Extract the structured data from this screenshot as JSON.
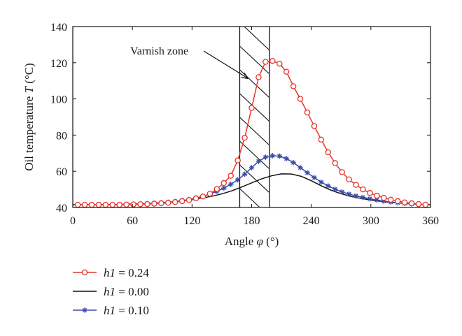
{
  "chart_data": {
    "type": "line",
    "xlabel": {
      "prefix": "Angle ",
      "symbol": "φ",
      "suffix": " (°)"
    },
    "ylabel": {
      "prefix": "Oil temperature ",
      "symbol": "T",
      "suffix": " (°C)"
    },
    "xlim": [
      0,
      360
    ],
    "ylim": [
      40,
      140
    ],
    "xticks": [
      0,
      60,
      120,
      180,
      240,
      300,
      360
    ],
    "yticks": [
      40,
      60,
      80,
      100,
      120,
      140
    ],
    "grid": false,
    "legend_position": "bottom-left, below plot",
    "annotation": {
      "text": "Varnish zone",
      "x_range": [
        168,
        198
      ]
    },
    "series": [
      {
        "name": "0.24",
        "label_var": "h1",
        "label_op": " = ",
        "label_val": "0.24",
        "color": "#e8352a",
        "marker": "circle",
        "x": [
          5,
          12,
          19,
          26,
          33,
          40,
          47,
          54,
          61,
          68,
          75,
          82,
          89,
          96,
          103,
          110,
          117,
          124,
          131,
          138,
          145,
          152,
          159,
          166,
          173,
          180,
          187,
          194,
          201,
          208,
          215,
          222,
          229,
          236,
          243,
          250,
          257,
          264,
          271,
          278,
          285,
          292,
          299,
          306,
          313,
          320,
          327,
          334,
          341,
          348,
          355
        ],
        "values": [
          41.5,
          41.5,
          41.5,
          41.5,
          41.5,
          41.5,
          41.5,
          41.6,
          41.7,
          41.8,
          41.9,
          42.1,
          42.3,
          42.6,
          43.0,
          43.5,
          44.1,
          45.0,
          46.1,
          47.6,
          50.2,
          53.5,
          57.5,
          66.0,
          78.5,
          95.0,
          112.0,
          120.5,
          121.0,
          119.5,
          115.0,
          107.0,
          100.0,
          92.5,
          85.0,
          77.5,
          70.5,
          64.5,
          59.5,
          55.5,
          52.5,
          50.0,
          48.0,
          46.5,
          45.3,
          44.3,
          43.5,
          42.8,
          42.3,
          41.9,
          41.5
        ]
      },
      {
        "name": "0.00",
        "label_var": "h1",
        "label_op": " = ",
        "label_val": "0.00",
        "color": "#111111",
        "marker": "none",
        "x": [
          0,
          20,
          40,
          60,
          80,
          100,
          120,
          140,
          150,
          160,
          170,
          180,
          190,
          200,
          210,
          220,
          230,
          240,
          250,
          260,
          270,
          280,
          290,
          300,
          320,
          340,
          360
        ],
        "values": [
          41.5,
          41.5,
          41.6,
          41.9,
          42.3,
          43.0,
          44.3,
          46.2,
          47.5,
          49.2,
          51.3,
          53.6,
          55.8,
          57.5,
          58.6,
          58.5,
          57.2,
          54.8,
          52.0,
          49.5,
          47.6,
          46.1,
          45.0,
          44.1,
          42.8,
          42.0,
          41.5
        ]
      },
      {
        "name": "0.10",
        "label_var": "h1",
        "label_op": " = ",
        "label_val": "0.10",
        "color": "#3d4aa8",
        "marker": "star",
        "x": [
          5,
          12,
          19,
          26,
          33,
          40,
          47,
          54,
          61,
          68,
          75,
          82,
          89,
          96,
          103,
          110,
          117,
          124,
          131,
          138,
          145,
          152,
          159,
          166,
          173,
          180,
          187,
          194,
          201,
          208,
          215,
          222,
          229,
          236,
          243,
          250,
          257,
          264,
          271,
          278,
          285,
          292,
          299,
          306,
          313,
          320,
          327,
          334,
          341,
          348,
          355
        ],
        "values": [
          41.5,
          41.5,
          41.5,
          41.5,
          41.5,
          41.6,
          41.6,
          41.7,
          41.8,
          41.9,
          42.1,
          42.3,
          42.6,
          42.9,
          43.3,
          43.8,
          44.4,
          45.2,
          46.2,
          47.4,
          48.9,
          50.7,
          52.8,
          55.3,
          58.4,
          62.0,
          65.5,
          67.8,
          68.6,
          68.4,
          67.0,
          64.8,
          62.0,
          59.2,
          56.5,
          54.0,
          51.9,
          50.1,
          48.6,
          47.4,
          46.4,
          45.6,
          44.8,
          44.1,
          43.5,
          43.0,
          42.6,
          42.2,
          41.9,
          41.7,
          41.5
        ]
      }
    ]
  }
}
